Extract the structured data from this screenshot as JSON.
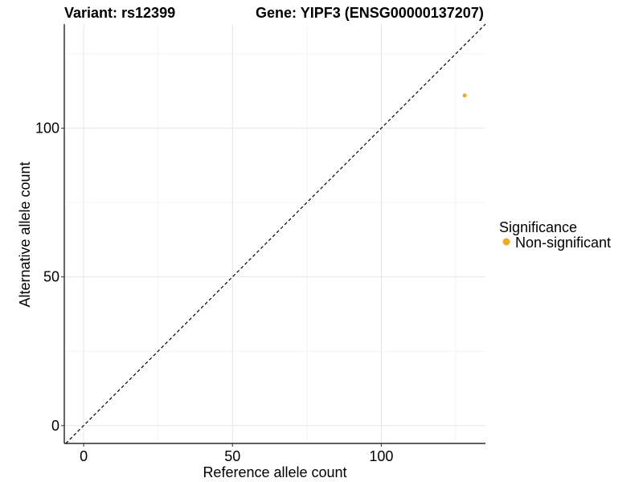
{
  "chart_data": {
    "type": "scatter",
    "title_left": "Variant: rs12399",
    "title_right": "Gene: YIPF3 (ENSG00000137207)",
    "xlabel": "Reference allele count",
    "ylabel": "Alternative allele count",
    "xlim": [
      -6.5,
      135
    ],
    "ylim": [
      -6,
      135
    ],
    "x_ticks": [
      0,
      50,
      100
    ],
    "y_ticks": [
      0,
      50,
      100
    ],
    "x_minor_grid": [
      25,
      75,
      125
    ],
    "y_minor_grid": [
      25,
      75,
      125
    ],
    "reference_line": {
      "type": "identity",
      "style": "dashed"
    },
    "legend": {
      "title": "Significance",
      "entries": [
        {
          "label": "Non-significant",
          "color": "#f5a623"
        }
      ]
    },
    "series": [
      {
        "name": "Non-significant",
        "color": "#f5a623",
        "points": [
          {
            "x": 128,
            "y": 111
          }
        ]
      }
    ]
  }
}
